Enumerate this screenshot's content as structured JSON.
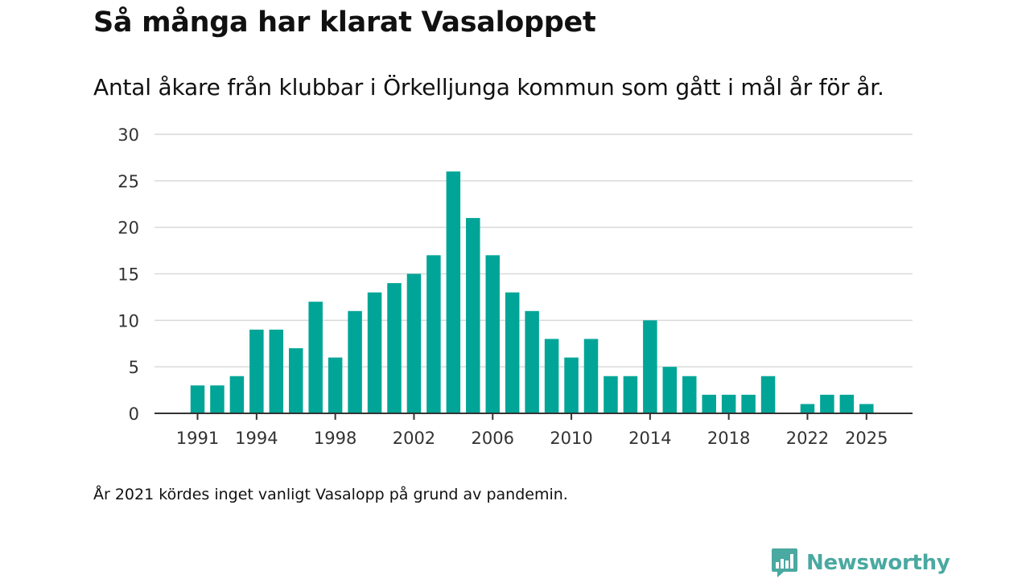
{
  "title": "Så många har klarat Vasaloppet",
  "subtitle": "Antal åkare från klubbar i Örkelljunga kommun som gått i mål år för år.",
  "note": "År 2021 kördes inget vanligt Vasalopp på grund av pandemin.",
  "brand": {
    "name": "Newsworthy",
    "color": "#4aa9a1"
  },
  "chart_data": {
    "type": "bar",
    "title": "Så många har klarat Vasaloppet",
    "xlabel": "",
    "ylabel": "",
    "ylim": [
      0,
      30
    ],
    "yticks": [
      0,
      5,
      10,
      15,
      20,
      25,
      30
    ],
    "xticks": [
      1991,
      1994,
      1998,
      2002,
      2006,
      2010,
      2014,
      2018,
      2022,
      2025
    ],
    "grid": true,
    "bar_color": "#00a597",
    "categories": [
      1991,
      1992,
      1993,
      1994,
      1995,
      1996,
      1997,
      1998,
      1999,
      2000,
      2001,
      2002,
      2003,
      2004,
      2005,
      2006,
      2007,
      2008,
      2009,
      2010,
      2011,
      2012,
      2013,
      2014,
      2015,
      2016,
      2017,
      2018,
      2019,
      2020,
      2021,
      2022,
      2023,
      2024,
      2025
    ],
    "values": [
      3,
      3,
      4,
      9,
      9,
      7,
      12,
      6,
      11,
      13,
      14,
      15,
      17,
      26,
      21,
      17,
      13,
      11,
      8,
      6,
      8,
      4,
      4,
      10,
      5,
      4,
      2,
      2,
      2,
      4,
      null,
      1,
      2,
      2,
      1
    ]
  }
}
